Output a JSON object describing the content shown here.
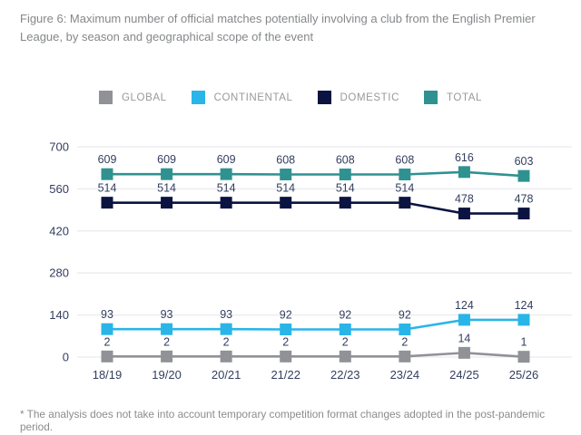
{
  "figure": {
    "title": "Figure 6: Maximum number of official matches potentially involving a club from the English Premier League, by season and geographical scope of the event",
    "footnote": "* The analysis does not take into account temporary competition format changes adopted in the post-pandemic period."
  },
  "colors": {
    "axis_text": "#333e5e",
    "grid_line": "#ebebf0",
    "title_text": "#85878a",
    "legend_text": "#97999c"
  },
  "chart_data": {
    "type": "line",
    "categories": [
      "18/19",
      "19/20",
      "20/21",
      "21/22",
      "22/23",
      "23/24",
      "24/25",
      "25/26"
    ],
    "series": [
      {
        "name": "GLOBAL",
        "color": "#909297",
        "values": [
          2,
          2,
          2,
          2,
          2,
          2,
          14,
          1
        ]
      },
      {
        "name": "CONTINENTAL",
        "color": "#29b5e8",
        "values": [
          93,
          93,
          93,
          92,
          92,
          92,
          124,
          124
        ]
      },
      {
        "name": "DOMESTIC",
        "color": "#0b1340",
        "values": [
          514,
          514,
          514,
          514,
          514,
          514,
          478,
          478
        ]
      },
      {
        "name": "TOTAL",
        "color": "#2f9290",
        "values": [
          609,
          609,
          609,
          608,
          608,
          608,
          616,
          603
        ]
      }
    ],
    "title": "Figure 6: Maximum number of official matches potentially involving a club from the English Premier League, by season and geographical scope of the event",
    "xlabel": "",
    "ylabel": "",
    "yticks": [
      0,
      140,
      280,
      420,
      560,
      700
    ],
    "ylim": [
      0,
      700
    ],
    "grid": true,
    "legend_position": "top",
    "point_labels_shown": true
  }
}
